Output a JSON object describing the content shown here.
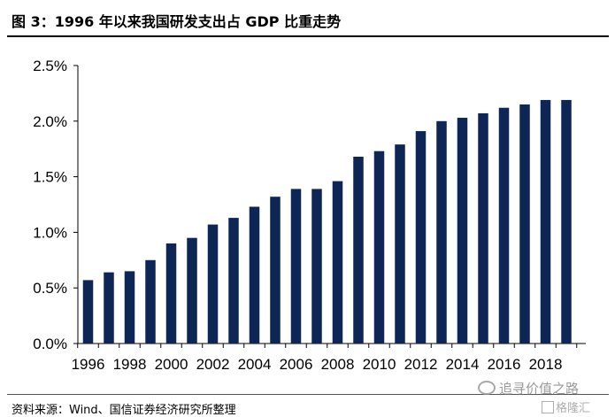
{
  "header": {
    "title": "图 3：1996 年以来我国研发支出占 GDP 比重走势"
  },
  "footer": {
    "source": "资料来源：Wind、国信证券经济研究所整理"
  },
  "watermark": {
    "text": "追寻价值之路",
    "brand": "格隆汇"
  },
  "chart_data": {
    "type": "bar",
    "title": "",
    "xlabel": "",
    "ylabel": "",
    "categories": [
      "1996",
      "1997",
      "1998",
      "1999",
      "2000",
      "2001",
      "2002",
      "2003",
      "2004",
      "2005",
      "2006",
      "2007",
      "2008",
      "2009",
      "2010",
      "2011",
      "2012",
      "2013",
      "2014",
      "2015",
      "2016",
      "2017",
      "2018",
      "2019"
    ],
    "x_tick_labels": [
      "1996",
      "1998",
      "2000",
      "2002",
      "2004",
      "2006",
      "2008",
      "2010",
      "2012",
      "2014",
      "2016",
      "2018"
    ],
    "values": [
      0.57,
      0.64,
      0.65,
      0.75,
      0.9,
      0.95,
      1.07,
      1.13,
      1.23,
      1.32,
      1.39,
      1.39,
      1.46,
      1.68,
      1.73,
      1.79,
      1.91,
      2.0,
      2.03,
      2.07,
      2.12,
      2.15,
      2.19,
      2.19
    ],
    "ylim": [
      0,
      2.5
    ],
    "y_ticks": [
      "0.0%",
      "0.5%",
      "1.0%",
      "1.5%",
      "2.0%",
      "2.5%"
    ],
    "y_tick_values": [
      0,
      0.5,
      1.0,
      1.5,
      2.0,
      2.5
    ],
    "grid": false,
    "legend": "none",
    "bar_color": "#0d2656"
  }
}
